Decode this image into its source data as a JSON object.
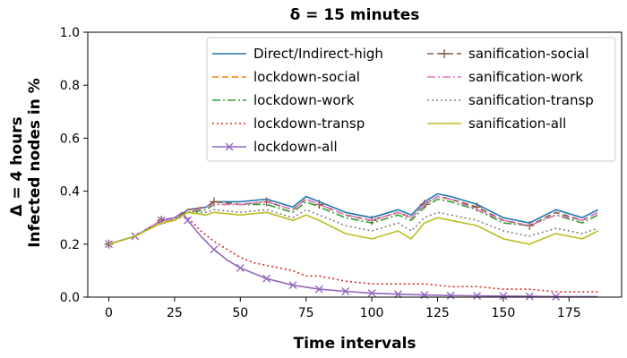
{
  "chart_data": {
    "type": "line",
    "title": "δ = 15 minutes",
    "xlabel": "Time intervals",
    "ylabel_line1": "Δ = 4 hours",
    "ylabel_line2": "Infected nodes in %",
    "xlim": [
      -8,
      195
    ],
    "ylim": [
      0,
      1
    ],
    "xticks": [
      0,
      25,
      50,
      75,
      100,
      125,
      150,
      175
    ],
    "yticks": [
      "0.0",
      "0.2",
      "0.4",
      "0.6",
      "0.8",
      "1.0"
    ],
    "grid": false,
    "legend_position": "top-right",
    "series": [
      {
        "name": "Direct/Indirect-high",
        "color": "#1f77b4",
        "dash": "",
        "marker": "",
        "x": [
          0,
          10,
          20,
          25,
          30,
          37,
          40,
          50,
          60,
          70,
          75,
          80,
          90,
          100,
          110,
          115,
          120,
          125,
          130,
          140,
          150,
          160,
          170,
          180,
          186
        ],
        "y": [
          0.2,
          0.23,
          0.29,
          0.29,
          0.33,
          0.34,
          0.36,
          0.36,
          0.37,
          0.34,
          0.38,
          0.36,
          0.32,
          0.3,
          0.33,
          0.31,
          0.36,
          0.39,
          0.38,
          0.35,
          0.3,
          0.28,
          0.33,
          0.3,
          0.33
        ]
      },
      {
        "name": "lockdown-social",
        "color": "#ff7f0e",
        "dash": "7,4",
        "marker": "",
        "x": [
          0,
          10,
          20,
          25,
          30,
          37,
          40,
          50,
          60,
          70,
          75,
          80,
          90,
          100,
          110,
          115,
          120,
          125,
          130,
          140,
          150,
          160,
          170,
          180,
          186
        ],
        "y": [
          0.2,
          0.23,
          0.29,
          0.29,
          0.33,
          0.34,
          0.36,
          0.35,
          0.36,
          0.33,
          0.37,
          0.35,
          0.31,
          0.29,
          0.32,
          0.3,
          0.35,
          0.38,
          0.37,
          0.34,
          0.29,
          0.27,
          0.32,
          0.29,
          0.32
        ]
      },
      {
        "name": "lockdown-work",
        "color": "#2ca02c",
        "dash": "9,3,2,3",
        "marker": "",
        "x": [
          0,
          10,
          20,
          25,
          30,
          37,
          40,
          50,
          60,
          70,
          75,
          80,
          90,
          100,
          110,
          115,
          120,
          125,
          130,
          140,
          150,
          160,
          170,
          180,
          186
        ],
        "y": [
          0.2,
          0.23,
          0.28,
          0.29,
          0.32,
          0.33,
          0.35,
          0.35,
          0.35,
          0.32,
          0.36,
          0.34,
          0.3,
          0.28,
          0.31,
          0.29,
          0.34,
          0.37,
          0.36,
          0.33,
          0.28,
          0.27,
          0.31,
          0.28,
          0.31
        ]
      },
      {
        "name": "lockdown-transp",
        "color": "#d62728",
        "dash": "2,3",
        "marker": "",
        "x": [
          0,
          10,
          20,
          25,
          30,
          35,
          40,
          45,
          50,
          55,
          60,
          70,
          75,
          80,
          90,
          100,
          110,
          120,
          130,
          140,
          150,
          160,
          170,
          180,
          186
        ],
        "y": [
          0.2,
          0.23,
          0.29,
          0.3,
          0.3,
          0.25,
          0.21,
          0.18,
          0.15,
          0.13,
          0.12,
          0.1,
          0.08,
          0.08,
          0.06,
          0.05,
          0.05,
          0.05,
          0.04,
          0.04,
          0.03,
          0.03,
          0.02,
          0.02,
          0.02
        ]
      },
      {
        "name": "lockdown-all",
        "color": "#9467bd",
        "dash": "",
        "marker": "x",
        "x": [
          0,
          10,
          20,
          25,
          28,
          30,
          35,
          40,
          45,
          50,
          60,
          70,
          80,
          90,
          100,
          110,
          120,
          130,
          140,
          150,
          160,
          170,
          180,
          186
        ],
        "y": [
          0.2,
          0.23,
          0.29,
          0.3,
          0.32,
          0.29,
          0.23,
          0.18,
          0.14,
          0.11,
          0.07,
          0.045,
          0.03,
          0.022,
          0.015,
          0.011,
          0.008,
          0.006,
          0.005,
          0.004,
          0.003,
          0.002,
          0.002,
          0.002
        ],
        "marker_x": [
          0,
          10,
          20,
          30,
          40,
          50,
          60,
          70,
          80,
          90,
          100,
          110,
          120,
          130,
          140,
          150,
          160,
          170
        ]
      },
      {
        "name": "sanification-social",
        "color": "#8c564b",
        "dash": "7,4",
        "marker": "+",
        "x": [
          0,
          10,
          20,
          25,
          30,
          37,
          40,
          50,
          60,
          70,
          75,
          80,
          90,
          100,
          110,
          115,
          120,
          125,
          130,
          140,
          150,
          160,
          170,
          180,
          186
        ],
        "y": [
          0.2,
          0.23,
          0.29,
          0.29,
          0.33,
          0.34,
          0.36,
          0.35,
          0.36,
          0.33,
          0.37,
          0.35,
          0.31,
          0.29,
          0.32,
          0.3,
          0.35,
          0.38,
          0.37,
          0.34,
          0.29,
          0.27,
          0.32,
          0.29,
          0.32
        ],
        "marker_x": [
          0,
          20,
          40,
          60,
          80,
          100,
          120,
          140,
          160
        ]
      },
      {
        "name": "sanification-work",
        "color": "#e377c2",
        "dash": "9,3,2,3",
        "marker": "",
        "x": [
          0,
          10,
          20,
          25,
          30,
          37,
          40,
          50,
          60,
          70,
          75,
          80,
          90,
          100,
          110,
          115,
          120,
          125,
          130,
          140,
          150,
          160,
          170,
          180,
          186
        ],
        "y": [
          0.2,
          0.23,
          0.29,
          0.29,
          0.32,
          0.34,
          0.35,
          0.35,
          0.36,
          0.33,
          0.37,
          0.35,
          0.31,
          0.29,
          0.32,
          0.3,
          0.35,
          0.38,
          0.37,
          0.33,
          0.29,
          0.27,
          0.31,
          0.29,
          0.32
        ]
      },
      {
        "name": "sanification-transp",
        "color": "#7f7f7f",
        "dash": "2,3",
        "marker": "",
        "x": [
          0,
          10,
          20,
          25,
          30,
          37,
          40,
          50,
          60,
          70,
          75,
          80,
          90,
          100,
          110,
          115,
          120,
          125,
          130,
          140,
          150,
          160,
          170,
          180,
          186
        ],
        "y": [
          0.2,
          0.23,
          0.28,
          0.29,
          0.32,
          0.32,
          0.33,
          0.32,
          0.33,
          0.3,
          0.33,
          0.31,
          0.27,
          0.25,
          0.28,
          0.25,
          0.3,
          0.32,
          0.31,
          0.29,
          0.25,
          0.23,
          0.26,
          0.24,
          0.26
        ]
      },
      {
        "name": "sanification-all",
        "color": "#bcbd22",
        "dash": "",
        "marker": "",
        "x": [
          0,
          10,
          20,
          25,
          30,
          37,
          40,
          50,
          60,
          70,
          75,
          80,
          90,
          100,
          110,
          115,
          120,
          125,
          130,
          140,
          150,
          160,
          170,
          180,
          186
        ],
        "y": [
          0.2,
          0.23,
          0.28,
          0.29,
          0.32,
          0.31,
          0.32,
          0.31,
          0.32,
          0.29,
          0.31,
          0.29,
          0.24,
          0.22,
          0.25,
          0.22,
          0.28,
          0.3,
          0.29,
          0.27,
          0.22,
          0.2,
          0.24,
          0.22,
          0.25
        ]
      }
    ]
  }
}
